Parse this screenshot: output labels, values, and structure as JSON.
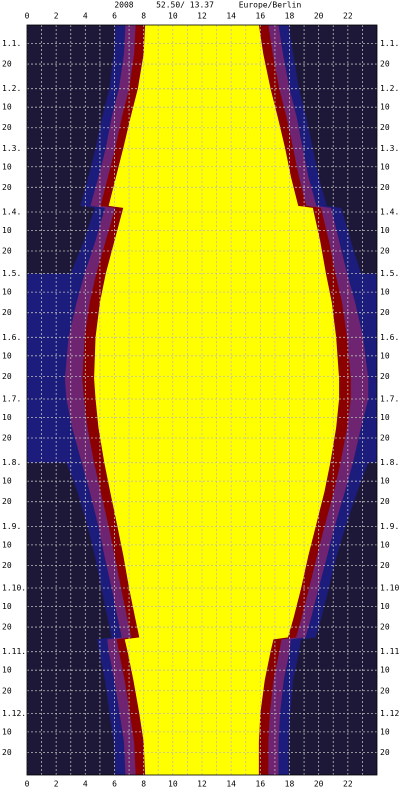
{
  "chart_data": {
    "type": "daylight",
    "title": "2008",
    "location": "52.50/ 13.37",
    "timezone": "Europe/Berlin",
    "xlim": [
      0,
      24
    ],
    "xticks": [
      0,
      2,
      4,
      6,
      8,
      10,
      12,
      14,
      16,
      18,
      20,
      22
    ],
    "ylim": [
      1,
      366
    ],
    "yticks": [
      {
        "value": 10,
        "label": "1.1."
      },
      20,
      {
        "value": 32,
        "label": "1.2."
      },
      {
        "value": 41,
        "label": "10"
      },
      {
        "value": 51,
        "label": "20"
      },
      {
        "value": 61,
        "label": "1.3."
      },
      {
        "value": 70,
        "label": "10"
      },
      {
        "value": 80,
        "label": "20"
      },
      {
        "value": 92,
        "label": "1.4."
      },
      {
        "value": 101,
        "label": "10"
      },
      {
        "value": 111,
        "label": "20"
      },
      {
        "value": 122,
        "label": "1.5."
      },
      {
        "value": 131,
        "label": "10"
      },
      {
        "value": 141,
        "label": "20"
      },
      {
        "value": 153,
        "label": "1.6."
      },
      {
        "value": 162,
        "label": "10"
      },
      {
        "value": 172,
        "label": "20"
      },
      {
        "value": 183,
        "label": "1.7."
      },
      {
        "value": 192,
        "label": "10"
      },
      {
        "value": 202,
        "label": "20"
      },
      {
        "value": 214,
        "label": "1.8."
      },
      {
        "value": 223,
        "label": "10"
      },
      {
        "value": 233,
        "label": "20"
      },
      {
        "value": 245,
        "label": "1.9."
      },
      {
        "value": 254,
        "label": "10"
      },
      {
        "value": 264,
        "label": "20"
      },
      {
        "value": 275,
        "label": "1.10."
      },
      {
        "value": 284,
        "label": "10"
      },
      {
        "value": 294,
        "label": "20"
      },
      {
        "value": 306,
        "label": "1.11."
      },
      {
        "value": 315,
        "label": "10"
      },
      {
        "value": 325,
        "label": "20"
      },
      {
        "value": 336,
        "label": "1.12."
      },
      {
        "value": 345,
        "label": "10"
      },
      {
        "value": 355,
        "label": "20"
      }
    ],
    "grid": true,
    "night_color": "#1e1838",
    "y": [
      1,
      15,
      32,
      46,
      61,
      75,
      89,
      90,
      106,
      122,
      136,
      153,
      173,
      183,
      197,
      214,
      228,
      245,
      259,
      275,
      289,
      299,
      300,
      306,
      320,
      336,
      350,
      366
    ],
    "bands": [
      {
        "color": "#1c1c7c",
        "from": [
          6.05,
          5.95,
          5.65,
          5.15,
          4.7,
          4.2,
          3.65,
          4.65,
          3.9,
          3.0,
          null,
          null,
          null,
          null,
          null,
          2.7,
          3.45,
          4.15,
          4.65,
          5.1,
          5.5,
          5.8,
          4.8,
          4.95,
          5.35,
          5.65,
          5.95,
          6.05
        ],
        "to": [
          17.95,
          18.25,
          18.65,
          19.15,
          19.6,
          20.0,
          20.55,
          21.55,
          22.2,
          22.9,
          null,
          null,
          null,
          null,
          null,
          23.4,
          22.65,
          21.85,
          21.25,
          20.7,
          20.2,
          19.8,
          18.8,
          18.65,
          18.25,
          18.05,
          17.95,
          17.95
        ]
      },
      {
        "color": "#6e2470",
        "from": [
          6.75,
          6.65,
          6.3,
          5.8,
          5.4,
          4.9,
          4.35,
          5.35,
          4.7,
          3.95,
          3.4,
          2.85,
          2.6,
          2.7,
          3.1,
          3.75,
          4.3,
          4.9,
          5.3,
          5.8,
          6.2,
          6.5,
          5.5,
          5.6,
          6.0,
          6.35,
          6.65,
          6.75
        ],
        "to": [
          17.25,
          17.55,
          18.0,
          18.5,
          18.9,
          19.3,
          19.85,
          20.85,
          21.4,
          21.95,
          22.5,
          23.05,
          23.4,
          23.4,
          22.9,
          22.35,
          21.8,
          21.1,
          20.6,
          20.0,
          19.5,
          19.1,
          18.1,
          18.0,
          17.6,
          17.35,
          17.25,
          17.25
        ]
      },
      {
        "color": "#8b0000",
        "from": [
          7.45,
          7.35,
          7.0,
          6.5,
          6.05,
          5.55,
          5.05,
          6.05,
          5.4,
          4.75,
          4.3,
          3.95,
          3.8,
          3.9,
          4.15,
          4.6,
          5.05,
          5.6,
          6.0,
          6.45,
          6.85,
          7.15,
          6.15,
          6.3,
          6.7,
          7.05,
          7.35,
          7.45
        ],
        "to": [
          16.55,
          16.85,
          17.3,
          17.8,
          18.25,
          18.65,
          19.15,
          20.15,
          20.7,
          21.15,
          21.6,
          21.95,
          22.2,
          22.2,
          21.95,
          21.5,
          21.05,
          20.4,
          19.9,
          19.35,
          18.85,
          18.45,
          17.45,
          17.3,
          16.9,
          16.65,
          16.55,
          16.55
        ]
      },
      {
        "color": "#ffff00",
        "from": [
          8.1,
          8.0,
          7.6,
          7.1,
          6.6,
          6.1,
          5.6,
          6.6,
          6.0,
          5.4,
          5.0,
          4.7,
          4.6,
          4.7,
          4.9,
          5.3,
          5.7,
          6.2,
          6.6,
          7.0,
          7.4,
          7.7,
          6.7,
          6.9,
          7.3,
          7.7,
          8.0,
          8.1
        ],
        "to": [
          15.9,
          16.2,
          16.7,
          17.2,
          17.7,
          18.1,
          18.6,
          19.6,
          20.1,
          20.5,
          20.9,
          21.2,
          21.4,
          21.4,
          21.2,
          20.8,
          20.4,
          19.8,
          19.3,
          18.8,
          18.3,
          17.9,
          16.9,
          16.7,
          16.3,
          16.0,
          15.9,
          15.9
        ]
      }
    ]
  }
}
